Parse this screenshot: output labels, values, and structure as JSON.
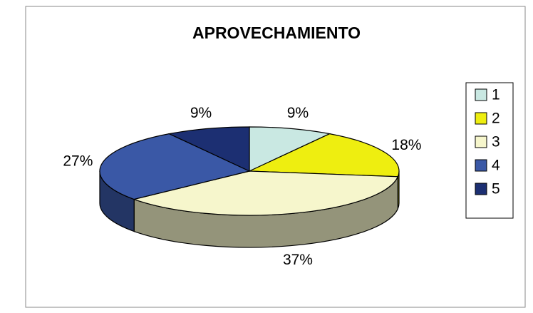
{
  "chart_data": {
    "type": "pie",
    "title": "APROVECHAMIENTO",
    "categories": [
      "1",
      "2",
      "3",
      "4",
      "5"
    ],
    "values": [
      9,
      18,
      37,
      27,
      9
    ],
    "value_labels": [
      "9%",
      "18%",
      "37%",
      "27%",
      "9%"
    ],
    "colors": [
      "#c9e8e2",
      "#eeee10",
      "#f6f6cc",
      "#3a58a6",
      "#1c2f72"
    ],
    "legend": "right"
  }
}
